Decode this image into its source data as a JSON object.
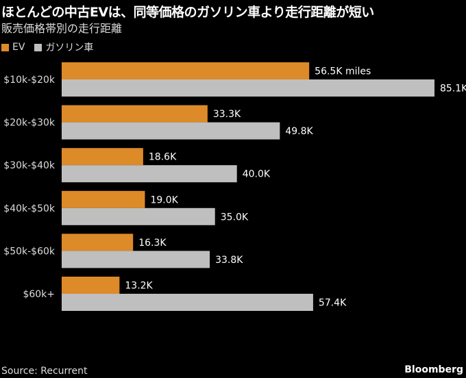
{
  "title": "ほとんどの中古EVは、同等価格のガソリン車より走行距離が短い",
  "subtitle": "販売価格帯別の走行距離",
  "source": "Source: Recurrent",
  "brand": "Bloomberg",
  "colors": {
    "ev": "#dd8a28",
    "gas": "#bfbfbf"
  },
  "chart_data": {
    "type": "bar",
    "orientation": "horizontal",
    "categories": [
      "$10k-$20k",
      "$20k-$30k",
      "$30k-$40k",
      "$40k-$50k",
      "$50k-$60k",
      "$60k+"
    ],
    "series": [
      {
        "name": "EV",
        "values": [
          56.5,
          33.3,
          18.6,
          19.0,
          16.3,
          13.2
        ],
        "labels": [
          "56.5K miles",
          "33.3K",
          "18.6K",
          "19.0K",
          "16.3K",
          "13.2K"
        ]
      },
      {
        "name": "ガソリン車",
        "values": [
          85.1,
          49.8,
          40.0,
          35.0,
          33.8,
          57.4
        ],
        "labels": [
          "85.1K",
          "49.8K",
          "40.0K",
          "35.0K",
          "33.8K",
          "57.4K"
        ]
      }
    ],
    "unit": "thousand miles",
    "xlim": [
      0,
      85.1
    ],
    "grid": false,
    "legend_position": "top-left"
  }
}
